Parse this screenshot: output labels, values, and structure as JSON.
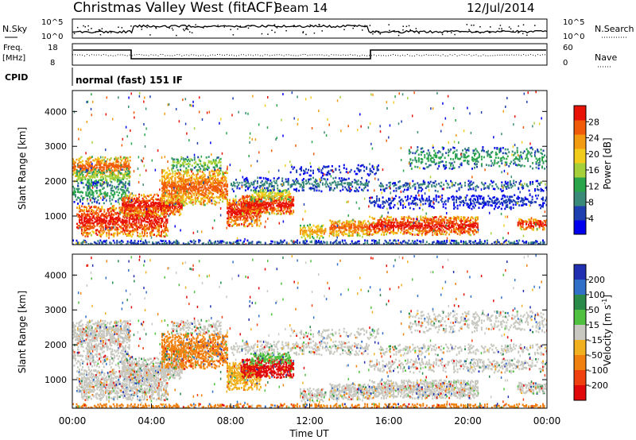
{
  "header": {
    "title": "Christmas Valley West (fitACF)",
    "beam": "Beam 14",
    "date": "12/Jul/2014"
  },
  "top_panels": {
    "nsky": {
      "left_label": "N.Sky",
      "left_ticks": [
        "10^5",
        "10^0"
      ],
      "right_ticks": [
        "10^5",
        "10^0"
      ],
      "right_label": "N.Search"
    },
    "freq": {
      "left_label_1": "Freq.",
      "left_label_2": "[MHz]",
      "left_ticks": [
        "18",
        "8"
      ],
      "right_ticks": [
        "60",
        "0"
      ],
      "right_label": "Nave"
    },
    "cpid": {
      "label": "CPID",
      "text": "normal (fast) 151 IF"
    }
  },
  "chart_data": [
    {
      "type": "heatmap",
      "name": "power-panel",
      "ylabel": "Slant Range [km]",
      "ylim": [
        180,
        4600
      ],
      "yticks": [
        "1000",
        "2000",
        "3000",
        "4000"
      ],
      "colorbar": {
        "label": "Power [dB]",
        "ticks": [
          "4",
          "8",
          "12",
          "16",
          "20",
          "24",
          "28"
        ],
        "colors": [
          "#0000ee",
          "#1d3fb0",
          "#3a8a7a",
          "#2aa54a",
          "#a6d03a",
          "#f2cc1a",
          "#f29a10",
          "#f05a08",
          "#e81206"
        ]
      }
    },
    {
      "type": "heatmap",
      "name": "velocity-panel",
      "xlabel": "Time UT",
      "ylabel": "Slant Range [km]",
      "ylim": [
        180,
        4600
      ],
      "yticks": [
        "1000",
        "2000",
        "3000",
        "4000"
      ],
      "xticks": [
        "00:00",
        "04:00",
        "08:00",
        "12:00",
        "16:00",
        "20:00",
        "00:00"
      ],
      "colorbar": {
        "label_main": "Velocity",
        "label_unit": "[m s",
        "label_sup": "-1",
        "label_end": "]",
        "ticks": [
          "200",
          "100",
          "50",
          "15",
          "-15",
          "-50",
          "-100",
          "-200"
        ],
        "colors": [
          "#2030b0",
          "#3070c8",
          "#2a8a4a",
          "#50c040",
          "#c8c8c0",
          "#f0b020",
          "#f08010",
          "#f04010",
          "#e00808"
        ]
      }
    }
  ]
}
